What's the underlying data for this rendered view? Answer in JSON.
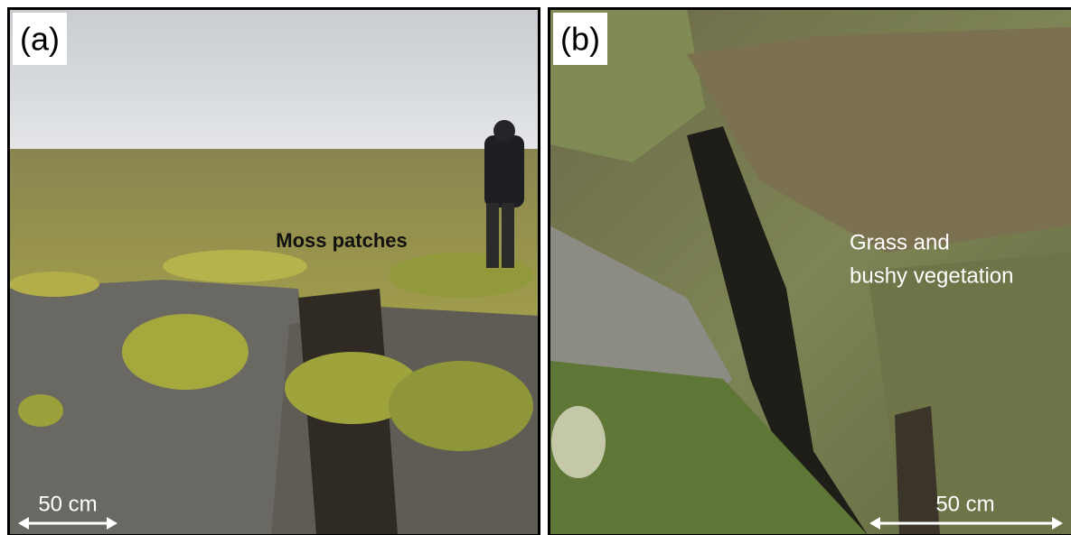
{
  "panels": [
    {
      "label": "(a)",
      "annotation": "Moss patches",
      "scale_bar": "50 cm"
    },
    {
      "label": "(b)",
      "annotation_lines": [
        "Grass and",
        "bushy vegetation"
      ],
      "scale_bar": "50 cm"
    }
  ]
}
